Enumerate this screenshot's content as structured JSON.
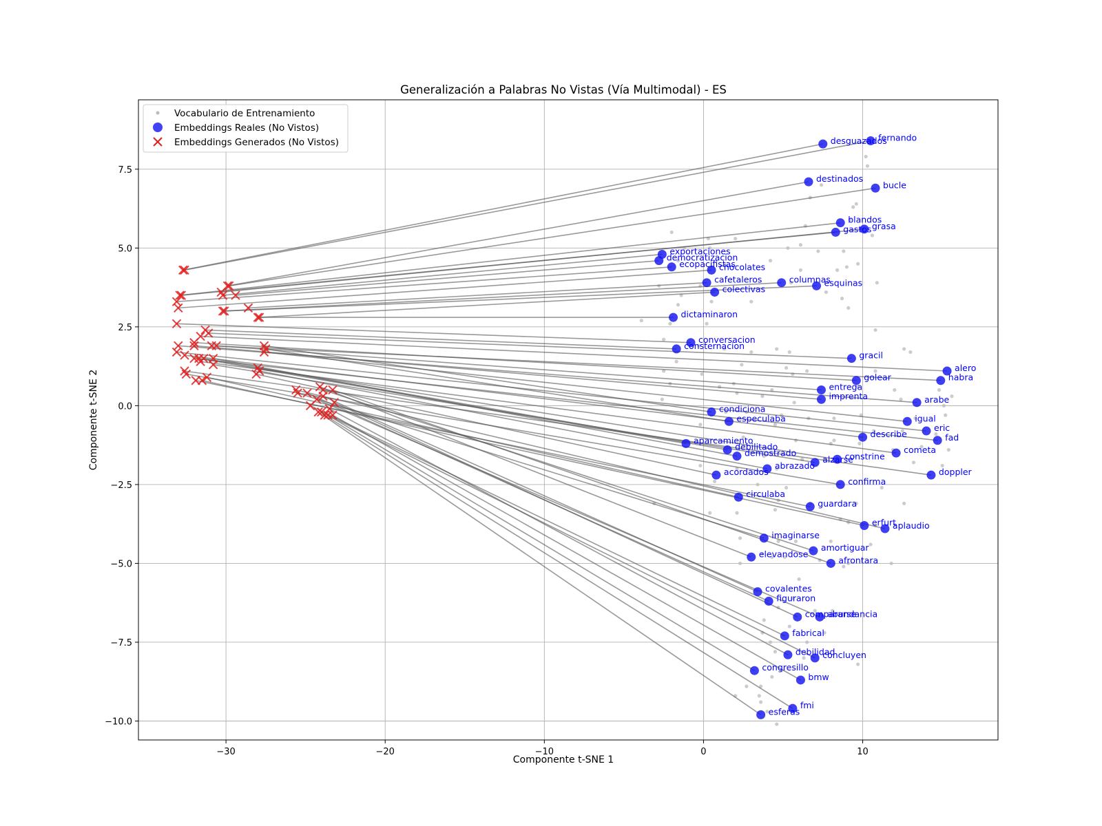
{
  "chart_data": {
    "type": "scatter",
    "title": "Generalización a Palabras No Vistas (Vía Multimodal) - ES",
    "xlabel": "Componente t-SNE 1",
    "ylabel": "Componente t-SNE 2",
    "xlim": [
      -35.5,
      18.5
    ],
    "ylim": [
      -10.6,
      9.7
    ],
    "xticks": [
      -30,
      -20,
      -10,
      0,
      10
    ],
    "yticks": [
      -10.0,
      -7.5,
      -5.0,
      -2.5,
      0.0,
      2.5,
      5.0,
      7.5
    ],
    "xtick_labels": [
      "−30",
      "−20",
      "−10",
      "0",
      "10"
    ],
    "ytick_labels": [
      "−10.0",
      "−7.5",
      "−5.0",
      "−2.5",
      "0.0",
      "2.5",
      "5.0",
      "7.5"
    ],
    "grid": true,
    "legend": {
      "placement": "upper-left",
      "entries": [
        "Vocabulario de Entrenamiento",
        "Embeddings Reales (No Vistos)",
        "Embeddings Generados (No Vistos)"
      ]
    },
    "colors": {
      "train": "#bbbbbb",
      "real": "#1414f0",
      "generated": "#e02020",
      "connector": "#555555",
      "label": "#0000ff",
      "grid": "#b0b0b0"
    },
    "series": [
      {
        "name": "Vocabulario de Entrenamiento",
        "points": [
          [
            10.2,
            7.9
          ],
          [
            10.3,
            7.6
          ],
          [
            7.4,
            7.0
          ],
          [
            6.7,
            6.6
          ],
          [
            9.4,
            6.3
          ],
          [
            9.6,
            6.4
          ],
          [
            9.2,
            5.9
          ],
          [
            6.4,
            5.7
          ],
          [
            10.6,
            5.4
          ],
          [
            2.0,
            5.3
          ],
          [
            -2.0,
            5.5
          ],
          [
            0.3,
            5.3
          ],
          [
            -1.2,
            5.0
          ],
          [
            0.4,
            5.0
          ],
          [
            5.3,
            5.0
          ],
          [
            6.1,
            5.1
          ],
          [
            7.2,
            4.9
          ],
          [
            8.8,
            4.9
          ],
          [
            9.7,
            4.5
          ],
          [
            -1.6,
            4.6
          ],
          [
            4.2,
            4.6
          ],
          [
            6.1,
            4.3
          ],
          [
            8.4,
            4.3
          ],
          [
            9.0,
            4.4
          ],
          [
            5.5,
            3.9
          ],
          [
            10.9,
            3.9
          ],
          [
            7.7,
            3.6
          ],
          [
            -1.4,
            3.5
          ],
          [
            -0.2,
            3.8
          ],
          [
            -2.8,
            3.8
          ],
          [
            0.5,
            3.3
          ],
          [
            -1.6,
            3.2
          ],
          [
            3.0,
            3.3
          ],
          [
            8.7,
            3.4
          ],
          [
            9.1,
            3.1
          ],
          [
            -3.9,
            2.7
          ],
          [
            0.2,
            2.6
          ],
          [
            -2.1,
            2.6
          ],
          [
            10.8,
            2.4
          ],
          [
            -2.5,
            2.1
          ],
          [
            -0.3,
            1.9
          ],
          [
            1.3,
            1.8
          ],
          [
            3.0,
            1.7
          ],
          [
            4.6,
            1.8
          ],
          [
            5.4,
            1.7
          ],
          [
            12.6,
            1.8
          ],
          [
            13.0,
            1.7
          ],
          [
            -1.7,
            1.4
          ],
          [
            -2.5,
            1.1
          ],
          [
            2.4,
            1.3
          ],
          [
            5.2,
            1.2
          ],
          [
            6.5,
            1.1
          ],
          [
            10.8,
            1.1
          ],
          [
            5.6,
            1.0
          ],
          [
            -0.1,
            1.0
          ],
          [
            -2.1,
            0.7
          ],
          [
            1.0,
            0.6
          ],
          [
            1.9,
            0.7
          ],
          [
            4.3,
            0.5
          ],
          [
            9.7,
            0.6
          ],
          [
            12.0,
            0.5
          ],
          [
            14.8,
            0.5
          ],
          [
            15.6,
            0.3
          ],
          [
            -2.6,
            0.2
          ],
          [
            2.1,
            0.4
          ],
          [
            3.7,
            0.3
          ],
          [
            5.7,
            0.1
          ],
          [
            12.4,
            0.2
          ],
          [
            15.1,
            0.0
          ],
          [
            1.4,
            -0.2
          ],
          [
            2.7,
            -0.2
          ],
          [
            4.9,
            -0.3
          ],
          [
            6.6,
            -0.4
          ],
          [
            8.2,
            -0.4
          ],
          [
            9.9,
            -0.3
          ],
          [
            13.3,
            -0.4
          ],
          [
            15.2,
            -0.3
          ],
          [
            -0.2,
            -0.6
          ],
          [
            4.5,
            -0.6
          ],
          [
            10.7,
            -0.8
          ],
          [
            12.5,
            -0.8
          ],
          [
            14.6,
            -0.9
          ],
          [
            2.5,
            -1.0
          ],
          [
            5.8,
            -1.1
          ],
          [
            8.0,
            -1.2
          ],
          [
            8.2,
            -1.1
          ],
          [
            9.8,
            -1.2
          ],
          [
            11.9,
            -1.4
          ],
          [
            13.7,
            -1.3
          ],
          [
            15.4,
            -1.4
          ],
          [
            3.8,
            -1.6
          ],
          [
            6.2,
            -1.7
          ],
          [
            7.6,
            -1.7
          ],
          [
            9.5,
            -1.6
          ],
          [
            -0.2,
            -1.9
          ],
          [
            2.1,
            -2.0
          ],
          [
            4.6,
            -2.0
          ],
          [
            13.2,
            -1.8
          ],
          [
            15.0,
            -1.9
          ],
          [
            0.7,
            -2.4
          ],
          [
            3.4,
            -2.5
          ],
          [
            5.2,
            -2.6
          ],
          [
            11.2,
            -2.6
          ],
          [
            -3.1,
            -3.1
          ],
          [
            4.7,
            -3.0
          ],
          [
            6.7,
            -3.1
          ],
          [
            9.6,
            -3.1
          ],
          [
            12.6,
            -3.1
          ],
          [
            0.4,
            -3.4
          ],
          [
            2.1,
            -3.4
          ],
          [
            4.5,
            -3.3
          ],
          [
            8.6,
            -3.6
          ],
          [
            9.1,
            -3.7
          ],
          [
            10.8,
            -3.8
          ],
          [
            2.3,
            -4.2
          ],
          [
            4.7,
            -4.3
          ],
          [
            5.8,
            -4.3
          ],
          [
            8.0,
            -4.3
          ],
          [
            10.5,
            -4.4
          ],
          [
            3.7,
            -4.7
          ],
          [
            4.3,
            -4.8
          ],
          [
            5.1,
            -4.8
          ],
          [
            7.3,
            -4.9
          ],
          [
            9.1,
            -5.0
          ],
          [
            11.8,
            -5.0
          ],
          [
            2.3,
            -5.0
          ],
          [
            8.8,
            -5.1
          ],
          [
            6.0,
            -5.5
          ],
          [
            5.6,
            -6.1
          ],
          [
            4.7,
            -6.4
          ],
          [
            7.0,
            -6.5
          ],
          [
            8.1,
            -6.5
          ],
          [
            3.8,
            -6.8
          ],
          [
            5.4,
            -7.0
          ],
          [
            3.7,
            -7.2
          ],
          [
            7.6,
            -7.2
          ],
          [
            4.2,
            -7.5
          ],
          [
            6.5,
            -7.5
          ],
          [
            4.5,
            -7.8
          ],
          [
            6.3,
            -8.0
          ],
          [
            4.9,
            -8.4
          ],
          [
            9.7,
            -8.2
          ],
          [
            4.3,
            -8.6
          ],
          [
            3.6,
            -8.9
          ],
          [
            2.7,
            -8.9
          ],
          [
            3.5,
            -9.2
          ],
          [
            3.6,
            -9.4
          ],
          [
            2.0,
            -9.2
          ],
          [
            4.0,
            -9.7
          ],
          [
            4.6,
            -10.1
          ]
        ]
      },
      {
        "name": "Embeddings Reales (No Vistos)",
        "points": [
          {
            "label": "desguazados",
            "x": 7.5,
            "y": 8.3
          },
          {
            "label": "fernando",
            "x": 10.5,
            "y": 8.4
          },
          {
            "label": "destinados",
            "x": 6.6,
            "y": 7.1
          },
          {
            "label": "bucle",
            "x": 10.8,
            "y": 6.9
          },
          {
            "label": "blandos",
            "x": 8.6,
            "y": 5.8
          },
          {
            "label": "gastos",
            "x": 8.3,
            "y": 5.5
          },
          {
            "label": "grasa",
            "x": 10.1,
            "y": 5.6
          },
          {
            "label": "exportaciones",
            "x": -2.6,
            "y": 4.8
          },
          {
            "label": "democratizacion",
            "x": -2.8,
            "y": 4.6
          },
          {
            "label": "ecopacifistas",
            "x": -2.0,
            "y": 4.4
          },
          {
            "label": "chocolates",
            "x": 0.5,
            "y": 4.3
          },
          {
            "label": "cafetaleros",
            "x": 0.2,
            "y": 3.9
          },
          {
            "label": "columnas",
            "x": 4.9,
            "y": 3.9
          },
          {
            "label": "esquinas",
            "x": 7.1,
            "y": 3.8
          },
          {
            "label": "colectivas",
            "x": 0.7,
            "y": 3.6
          },
          {
            "label": "dictaminaron",
            "x": -1.9,
            "y": 2.8
          },
          {
            "label": "conversacion",
            "x": -0.8,
            "y": 2.0
          },
          {
            "label": "consternacion",
            "x": -1.7,
            "y": 1.8
          },
          {
            "label": "gracil",
            "x": 9.3,
            "y": 1.5
          },
          {
            "label": "alero",
            "x": 15.3,
            "y": 1.1
          },
          {
            "label": "golear",
            "x": 9.6,
            "y": 0.8
          },
          {
            "label": "habra",
            "x": 14.9,
            "y": 0.8
          },
          {
            "label": "entrega",
            "x": 7.4,
            "y": 0.5
          },
          {
            "label": "imprenta",
            "x": 7.4,
            "y": 0.2
          },
          {
            "label": "arabe",
            "x": 13.4,
            "y": 0.1
          },
          {
            "label": "condiciona",
            "x": 0.5,
            "y": -0.2
          },
          {
            "label": "especulaba",
            "x": 1.6,
            "y": -0.5
          },
          {
            "label": "igual",
            "x": 12.8,
            "y": -0.5
          },
          {
            "label": "eric",
            "x": 14.0,
            "y": -0.8
          },
          {
            "label": "describe",
            "x": 10.0,
            "y": -1.0
          },
          {
            "label": "fad",
            "x": 14.7,
            "y": -1.1
          },
          {
            "label": "aparcamiento",
            "x": -1.1,
            "y": -1.2
          },
          {
            "label": "debilitado",
            "x": 1.5,
            "y": -1.4
          },
          {
            "label": "demostrado",
            "x": 2.1,
            "y": -1.6
          },
          {
            "label": "cometa",
            "x": 12.1,
            "y": -1.5
          },
          {
            "label": "alzarse",
            "x": 7.0,
            "y": -1.8
          },
          {
            "label": "constrine",
            "x": 8.4,
            "y": -1.7
          },
          {
            "label": "abrazado",
            "x": 4.0,
            "y": -2.0
          },
          {
            "label": "acordados",
            "x": 0.8,
            "y": -2.2
          },
          {
            "label": "doppler",
            "x": 14.3,
            "y": -2.2
          },
          {
            "label": "confirma",
            "x": 8.6,
            "y": -2.5
          },
          {
            "label": "circulaba",
            "x": 2.2,
            "y": -2.9
          },
          {
            "label": "guardara",
            "x": 6.7,
            "y": -3.2
          },
          {
            "label": "erfurt",
            "x": 10.1,
            "y": -3.8
          },
          {
            "label": "aplaudio",
            "x": 11.4,
            "y": -3.9
          },
          {
            "label": "imaginarse",
            "x": 3.8,
            "y": -4.2
          },
          {
            "label": "amortiguar",
            "x": 6.9,
            "y": -4.6
          },
          {
            "label": "elevandose",
            "x": 3.0,
            "y": -4.8
          },
          {
            "label": "afrontara",
            "x": 8.0,
            "y": -5.0
          },
          {
            "label": "covalentes",
            "x": 3.4,
            "y": -5.9
          },
          {
            "label": "figuraron",
            "x": 4.1,
            "y": -6.2
          },
          {
            "label": "abundancia",
            "x": 7.3,
            "y": -6.7
          },
          {
            "label": "compararse",
            "x": 5.9,
            "y": -6.7
          },
          {
            "label": "fabrical",
            "x": 5.1,
            "y": -7.3
          },
          {
            "label": "debilidad",
            "x": 5.3,
            "y": -7.9
          },
          {
            "label": "concluyen",
            "x": 7.0,
            "y": -8.0
          },
          {
            "label": "congresillo",
            "x": 3.2,
            "y": -8.4
          },
          {
            "label": "bmw",
            "x": 6.1,
            "y": -8.7
          },
          {
            "label": "fmi",
            "x": 5.6,
            "y": -9.6
          },
          {
            "label": "esferas",
            "x": 3.6,
            "y": -9.8
          }
        ]
      },
      {
        "name": "Embeddings Generados (No Vistos)",
        "points": [
          [
            -32.7,
            4.3
          ],
          [
            -32.6,
            4.3
          ],
          [
            -29.9,
            3.8
          ],
          [
            -29.8,
            3.8
          ],
          [
            -32.9,
            3.5
          ],
          [
            -32.8,
            3.5
          ],
          [
            -30.3,
            3.6
          ],
          [
            -30.2,
            3.5
          ],
          [
            -29.4,
            3.5
          ],
          [
            -33.1,
            3.3
          ],
          [
            -33.0,
            3.1
          ],
          [
            -28.6,
            3.1
          ],
          [
            -30.2,
            3.0
          ],
          [
            -30.1,
            3.0
          ],
          [
            -28.0,
            2.8
          ],
          [
            -27.9,
            2.8
          ],
          [
            -33.1,
            2.6
          ],
          [
            -31.3,
            2.4
          ],
          [
            -31.1,
            2.3
          ],
          [
            -31.6,
            2.2
          ],
          [
            -32.0,
            2.0
          ],
          [
            -30.9,
            1.9
          ],
          [
            -30.6,
            1.9
          ],
          [
            -32.0,
            1.9
          ],
          [
            -33.0,
            1.9
          ],
          [
            -27.6,
            1.9
          ],
          [
            -27.5,
            1.8
          ],
          [
            -27.6,
            1.7
          ],
          [
            -33.1,
            1.7
          ],
          [
            -32.6,
            1.6
          ],
          [
            -32.0,
            1.5
          ],
          [
            -31.7,
            1.5
          ],
          [
            -31.4,
            1.5
          ],
          [
            -30.8,
            1.5
          ],
          [
            -31.6,
            1.4
          ],
          [
            -30.8,
            1.3
          ],
          [
            -28.0,
            1.2
          ],
          [
            -27.9,
            1.1
          ],
          [
            -28.1,
            1.0
          ],
          [
            -32.6,
            1.1
          ],
          [
            -32.5,
            1.0
          ],
          [
            -31.2,
            0.9
          ],
          [
            -31.9,
            0.8
          ],
          [
            -31.5,
            0.8
          ],
          [
            -25.6,
            0.5
          ],
          [
            -25.5,
            0.4
          ],
          [
            -23.9,
            0.5
          ],
          [
            -24.1,
            0.6
          ],
          [
            -23.3,
            0.5
          ],
          [
            -23.9,
            0.3
          ],
          [
            -24.9,
            0.4
          ],
          [
            -24.3,
            0.2
          ],
          [
            -23.2,
            0.1
          ],
          [
            -24.7,
            0.0
          ],
          [
            -23.5,
            -0.1
          ],
          [
            -24.0,
            -0.2
          ],
          [
            -23.6,
            -0.3
          ],
          [
            -23.3,
            -0.3
          ],
          [
            -23.8,
            -0.3
          ],
          [
            -24.2,
            -0.2
          ]
        ]
      }
    ]
  }
}
